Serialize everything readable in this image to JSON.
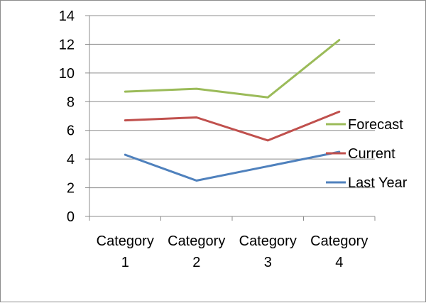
{
  "chart_data": {
    "type": "line",
    "categories": [
      [
        "Category",
        "1"
      ],
      [
        "Category",
        "2"
      ],
      [
        "Category",
        "3"
      ],
      [
        "Category",
        "4"
      ]
    ],
    "ylim": [
      0,
      14
    ],
    "yticks": [
      "0",
      "2",
      "4",
      "6",
      "8",
      "10",
      "12",
      "14"
    ],
    "grid": "horizontal",
    "legend_position": "right",
    "series": [
      {
        "name": "Forecast",
        "color": "#9bbb59",
        "values": [
          8.7,
          8.9,
          8.3,
          12.3
        ]
      },
      {
        "name": "Current",
        "color": "#c0504d",
        "values": [
          6.7,
          6.9,
          5.3,
          7.3
        ]
      },
      {
        "name": "Last Year",
        "color": "#4f81bd",
        "values": [
          4.3,
          2.5,
          3.5,
          4.5
        ]
      }
    ]
  }
}
